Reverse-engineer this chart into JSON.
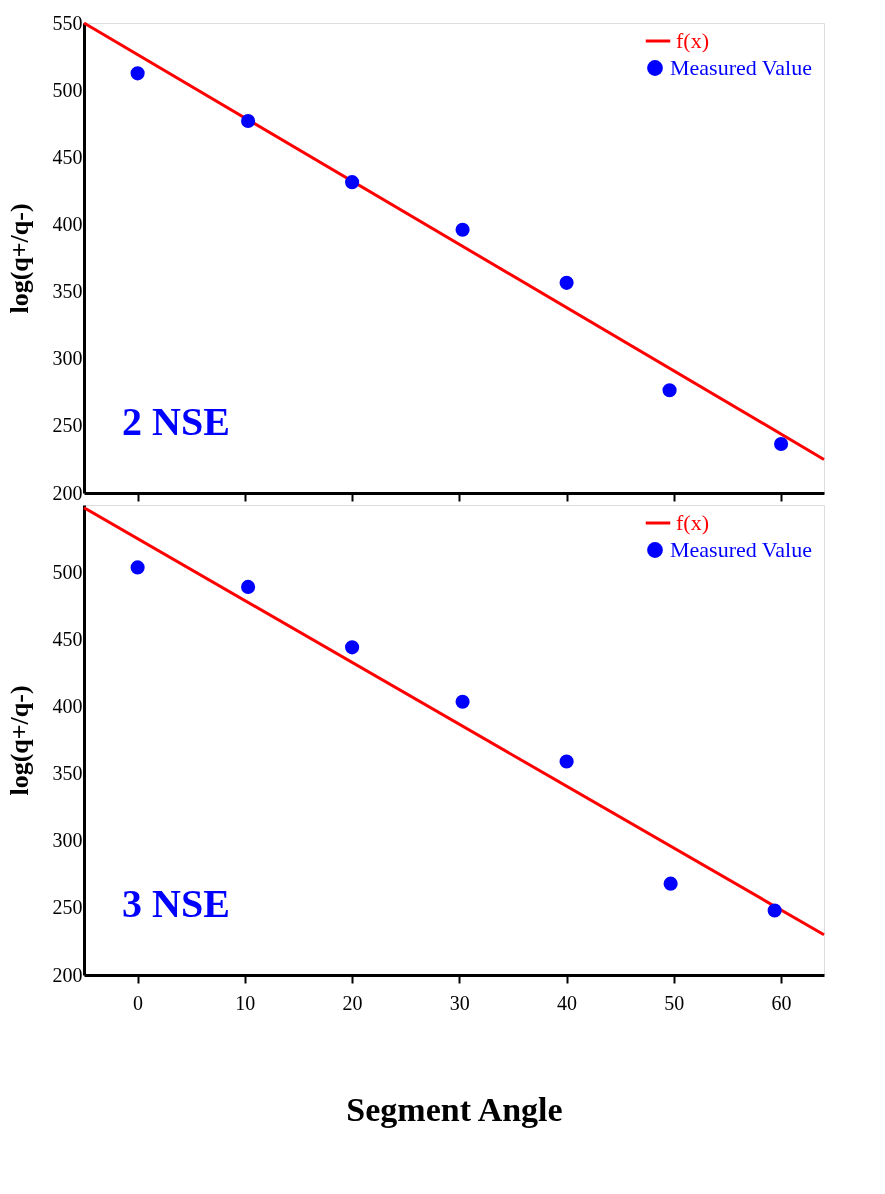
{
  "chart_data": [
    {
      "type": "scatter",
      "ylabel": "log(q+/q-)",
      "xlim": [
        -5,
        64
      ],
      "ylim": [
        200,
        550
      ],
      "xticks": [
        0,
        10,
        20,
        30,
        40,
        50,
        60
      ],
      "yticks": [
        200,
        250,
        300,
        350,
        400,
        450,
        500,
        550
      ],
      "tick_labels": "y",
      "legend": "top right",
      "grid": false,
      "annotations": [
        "2 NSE"
      ],
      "series": [
        {
          "name": "f(x)",
          "type": "line",
          "color": "#ff0000",
          "x": [
            -5,
            64
          ],
          "values": [
            550,
            225
          ]
        },
        {
          "name": "Measured Value",
          "type": "scatter",
          "color": "#0000ff",
          "marker": "circle",
          "x": [
            0,
            10.3,
            20,
            30.3,
            40,
            49.6,
            60
          ],
          "values": [
            512.5,
            477,
            431.5,
            396,
            356.5,
            276.5,
            236.5
          ]
        }
      ]
    },
    {
      "type": "scatter",
      "xlabel": "Segment Angle",
      "ylabel": "log(q+/q-)",
      "xlim": [
        -5,
        64
      ],
      "ylim": [
        200,
        550
      ],
      "xticks": [
        0,
        10,
        20,
        30,
        40,
        50,
        60
      ],
      "yticks": [
        200,
        250,
        300,
        350,
        400,
        450,
        500
      ],
      "legend": "top right",
      "grid": false,
      "annotations": [
        "3 NSE"
      ],
      "series": [
        {
          "name": "f(x)",
          "type": "line",
          "color": "#ff0000",
          "x": [
            -5,
            64
          ],
          "values": [
            548,
            230
          ]
        },
        {
          "name": "Measured Value",
          "type": "scatter",
          "color": "#0000ff",
          "marker": "circle",
          "x": [
            0,
            10.3,
            20,
            30.3,
            40,
            49.7,
            59.4
          ],
          "values": [
            503.5,
            489,
            444,
            403.5,
            359,
            268,
            248
          ]
        }
      ]
    }
  ]
}
